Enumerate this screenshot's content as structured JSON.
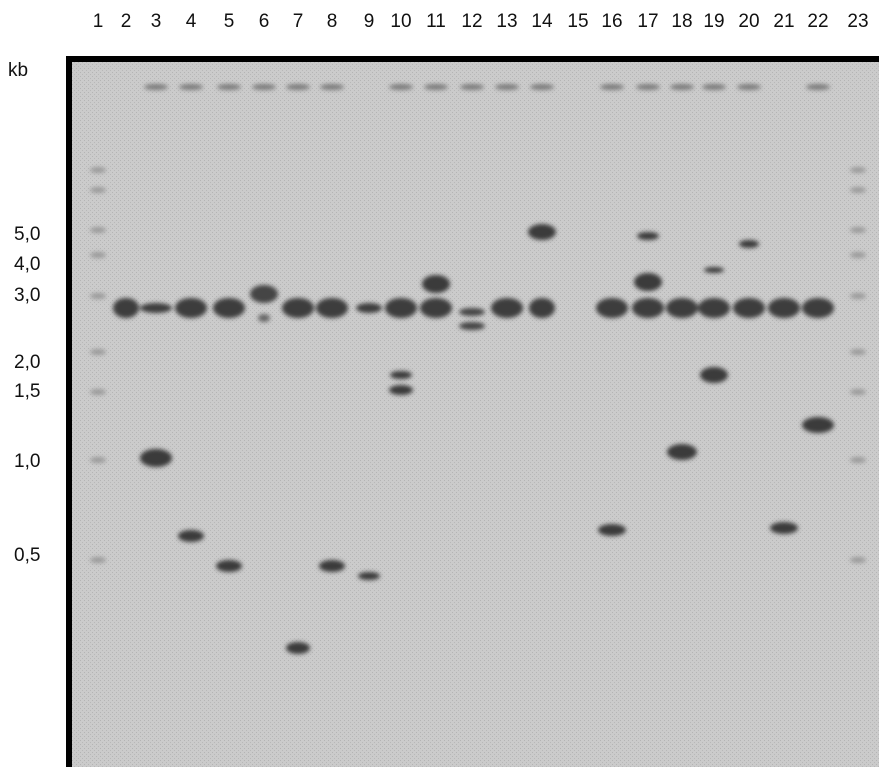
{
  "unit": "kb",
  "lanes": [
    "1",
    "2",
    "3",
    "4",
    "5",
    "6",
    "7",
    "8",
    "9",
    "10",
    "11",
    "12",
    "13",
    "14",
    "15",
    "16",
    "17",
    "18",
    "19",
    "20",
    "21",
    "22",
    "23"
  ],
  "sizes": [
    "5,0",
    "4,0",
    "3,0",
    "2,0",
    "1,5",
    "1,0",
    "0,5"
  ]
}
